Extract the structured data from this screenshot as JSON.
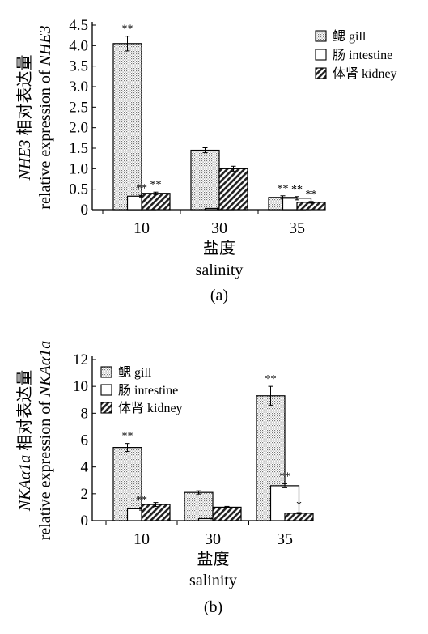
{
  "charts": [
    {
      "type": "bar",
      "panel_label": "(a)",
      "categories": [
        "10",
        "30",
        "35"
      ],
      "ylim": [
        0,
        4.5
      ],
      "y_ticks": [
        "0",
        "0.5",
        "1.0",
        "1.5",
        "2.0",
        "2.5",
        "3.0",
        "3.5",
        "4.0",
        "4.5"
      ],
      "ylabel": {
        "line1_italic": "NHE3",
        "line1_rest": " 相对表达量",
        "line2_plain": "relative expression of ",
        "line2_italic": "NHE3"
      },
      "xlabel": {
        "cn": "盐度",
        "en": "salinity"
      },
      "series": [
        {
          "name": "鳃 gill",
          "pattern": "dots",
          "values": [
            4.05,
            1.45,
            0.3
          ],
          "errors": [
            0.18,
            0.06,
            0.04
          ],
          "sig": [
            "**",
            "",
            "**"
          ]
        },
        {
          "name": "肠 intestine",
          "pattern": "blank",
          "values": [
            0.33,
            0.03,
            0.28
          ],
          "errors": [
            0.02,
            0.01,
            0.04
          ],
          "sig": [
            "**",
            "",
            "**"
          ]
        },
        {
          "name": "体肾 kidney",
          "pattern": "hatch",
          "values": [
            0.4,
            1.0,
            0.18
          ],
          "errors": [
            0.03,
            0.06,
            0.02
          ],
          "sig": [
            "**",
            "",
            "**"
          ]
        }
      ]
    },
    {
      "type": "bar",
      "panel_label": "(b)",
      "categories": [
        "10",
        "30",
        "35"
      ],
      "ylim": [
        0,
        12
      ],
      "y_ticks": [
        "0",
        "2",
        "4",
        "6",
        "8",
        "10",
        "12"
      ],
      "ylabel": {
        "line1_italic": "NKAα1a",
        "line1_rest": " 相对表达量",
        "line2_plain": "relative expression of ",
        "line2_italic": "NKAα1a"
      },
      "xlabel": {
        "cn": "盐度",
        "en": "salinity"
      },
      "series": [
        {
          "name": "鳃 gill",
          "pattern": "dots",
          "values": [
            5.45,
            2.1,
            9.3
          ],
          "errors": [
            0.3,
            0.12,
            0.7
          ],
          "sig": [
            "**",
            "",
            "**"
          ]
        },
        {
          "name": "肠 intestine",
          "pattern": "blank",
          "values": [
            0.88,
            0.15,
            2.6
          ],
          "errors": [
            0.1,
            0.02,
            0.15
          ],
          "sig": [
            "**",
            "",
            "**"
          ]
        },
        {
          "name": "体肾 kidney",
          "pattern": "hatch",
          "values": [
            1.2,
            1.0,
            0.55
          ],
          "errors": [
            0.15,
            0.06,
            0.05
          ],
          "sig": [
            "",
            "",
            "*"
          ]
        }
      ]
    }
  ]
}
